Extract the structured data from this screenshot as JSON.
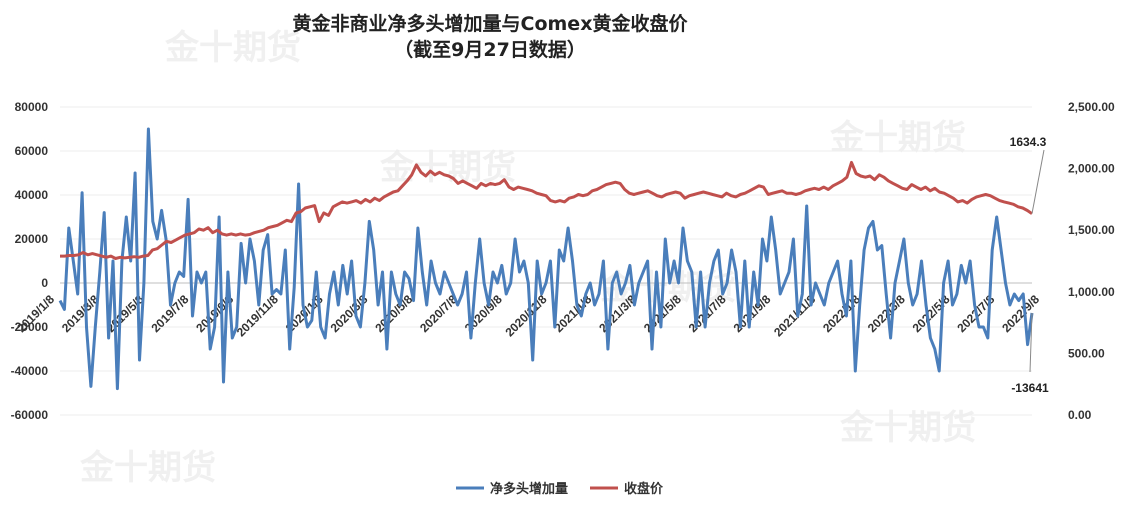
{
  "title_line1": "黄金非商业净多头增加量与Comex黄金收盘价",
  "title_line2": "（截至9月27日数据）",
  "watermark": "金十期货",
  "chart_data": {
    "type": "line",
    "title": "黄金非商业净多头增加量与Comex黄金收盘价",
    "subtitle": "（截至9月27日数据）",
    "left_axis": {
      "ticks": [
        "80000",
        "60000",
        "40000",
        "20000",
        "0",
        "-20000",
        "-40000",
        "-60000"
      ],
      "ylim": [
        -60000,
        80000
      ]
    },
    "right_axis": {
      "ticks": [
        "2,500.00",
        "2,000.00",
        "1,500.00",
        "1,000.00",
        "500.00",
        "0.00"
      ],
      "ylim": [
        0,
        2500
      ]
    },
    "x_tick_labels": [
      "2019/1/8",
      "2019/3/8",
      "2019/5/8",
      "2019/7/8",
      "2019/9/8",
      "2019/11/8",
      "2020/1/8",
      "2020/3/8",
      "2020/5/8",
      "2020/7/8",
      "2020/9/8",
      "2020/11/8",
      "2021/1/8",
      "2021/3/8",
      "2021/5/8",
      "2021/7/8",
      "2021/9/8",
      "2021/11/8",
      "2022/1/8",
      "2022/3/8",
      "2022/5/8",
      "2022/7/8",
      "2022/9/8"
    ],
    "legend": [
      "净多头增加量",
      "收盘价"
    ],
    "legend_position": "bottom",
    "annotations": [
      "1634.3",
      "-13641"
    ],
    "series": [
      {
        "name": "净多头增加量",
        "color": "#4a7ebb",
        "axis": "left",
        "values": [
          -8000,
          -12000,
          25000,
          10000,
          -5000,
          41000,
          -20000,
          -47000,
          -20000,
          5000,
          32000,
          -25000,
          10000,
          -48000,
          10000,
          30000,
          10000,
          50000,
          -35000,
          0,
          70000,
          28000,
          20000,
          33000,
          20000,
          -10000,
          0,
          5000,
          3000,
          38000,
          -15000,
          5000,
          0,
          5000,
          -30000,
          -20000,
          30000,
          -45000,
          5000,
          -25000,
          -20000,
          18000,
          0,
          20000,
          10000,
          -10000,
          15000,
          22000,
          -5000,
          -3000,
          -5000,
          15000,
          -30000,
          -2000,
          45000,
          -10000,
          -20000,
          -17000,
          5000,
          -20000,
          -25000,
          -5000,
          5000,
          -10000,
          8000,
          -5000,
          10000,
          -15000,
          -20000,
          0,
          28000,
          15000,
          -10000,
          5000,
          -30000,
          5000,
          -5000,
          -10000,
          5000,
          2000,
          -8000,
          25000,
          5000,
          -10000,
          10000,
          0,
          -5000,
          5000,
          0,
          -5000,
          -10000,
          -5000,
          5000,
          -25000,
          0,
          20000,
          0,
          -10000,
          5000,
          0,
          8000,
          -5000,
          0,
          20000,
          5000,
          10000,
          0,
          -35000,
          10000,
          -5000,
          0,
          10000,
          -20000,
          15000,
          10000,
          25000,
          10000,
          -10000,
          -15000,
          -5000,
          0,
          -10000,
          -5000,
          10000,
          -30000,
          0,
          5000,
          -5000,
          0,
          8000,
          -10000,
          0,
          5000,
          10000,
          -30000,
          5000,
          -20000,
          20000,
          0,
          10000,
          0,
          25000,
          10000,
          5000,
          -20000,
          5000,
          -20000,
          0,
          10000,
          15000,
          -5000,
          0,
          15000,
          5000,
          -20000,
          10000,
          -20000,
          5000,
          -10000,
          20000,
          10000,
          30000,
          15000,
          -5000,
          0,
          5000,
          20000,
          -15000,
          -5000,
          35000,
          -10000,
          0,
          -5000,
          -10000,
          0,
          5000,
          10000,
          -5000,
          -15000,
          10000,
          -40000,
          -10000,
          15000,
          25000,
          28000,
          15000,
          17000,
          -5000,
          -25000,
          0,
          10000,
          20000,
          0,
          -10000,
          -5000,
          10000,
          -10000,
          -25000,
          -30000,
          -40000,
          0,
          10000,
          -10000,
          -5000,
          8000,
          0,
          10000,
          -10000,
          -20000,
          -20000,
          -25000,
          15000,
          30000,
          15000,
          0,
          -10000,
          -5000,
          -8000,
          -5000,
          -28000,
          -13641
        ]
      },
      {
        "name": "收盘价",
        "color": "#c0504d",
        "axis": "right",
        "values": [
          1290,
          1290,
          1295,
          1295,
          1300,
          1320,
          1300,
          1310,
          1300,
          1290,
          1280,
          1290,
          1270,
          1280,
          1275,
          1280,
          1285,
          1280,
          1290,
          1295,
          1340,
          1350,
          1380,
          1410,
          1400,
          1420,
          1440,
          1460,
          1470,
          1480,
          1510,
          1500,
          1520,
          1480,
          1500,
          1470,
          1460,
          1470,
          1460,
          1470,
          1460,
          1465,
          1480,
          1490,
          1500,
          1520,
          1530,
          1540,
          1560,
          1580,
          1570,
          1640,
          1650,
          1680,
          1690,
          1700,
          1570,
          1640,
          1620,
          1690,
          1710,
          1730,
          1720,
          1730,
          1740,
          1720,
          1750,
          1730,
          1760,
          1740,
          1770,
          1790,
          1810,
          1820,
          1860,
          1900,
          1950,
          2030,
          1970,
          1940,
          1980,
          1950,
          1970,
          1950,
          1940,
          1920,
          1880,
          1900,
          1880,
          1860,
          1840,
          1880,
          1860,
          1880,
          1870,
          1880,
          1910,
          1850,
          1830,
          1850,
          1840,
          1830,
          1820,
          1800,
          1790,
          1780,
          1740,
          1730,
          1740,
          1730,
          1760,
          1770,
          1790,
          1780,
          1790,
          1820,
          1830,
          1850,
          1870,
          1880,
          1890,
          1880,
          1830,
          1800,
          1790,
          1800,
          1810,
          1820,
          1800,
          1780,
          1770,
          1790,
          1800,
          1810,
          1800,
          1760,
          1780,
          1790,
          1800,
          1810,
          1800,
          1790,
          1780,
          1770,
          1800,
          1780,
          1770,
          1790,
          1800,
          1820,
          1840,
          1860,
          1850,
          1790,
          1800,
          1810,
          1820,
          1800,
          1800,
          1790,
          1800,
          1820,
          1830,
          1840,
          1830,
          1850,
          1830,
          1860,
          1880,
          1900,
          1930,
          2050,
          1960,
          1940,
          1930,
          1940,
          1910,
          1950,
          1930,
          1900,
          1880,
          1860,
          1840,
          1830,
          1870,
          1850,
          1830,
          1850,
          1820,
          1840,
          1810,
          1800,
          1780,
          1760,
          1730,
          1740,
          1720,
          1750,
          1770,
          1780,
          1790,
          1780,
          1760,
          1740,
          1730,
          1720,
          1710,
          1690,
          1680,
          1660,
          1634.3
        ]
      }
    ]
  }
}
